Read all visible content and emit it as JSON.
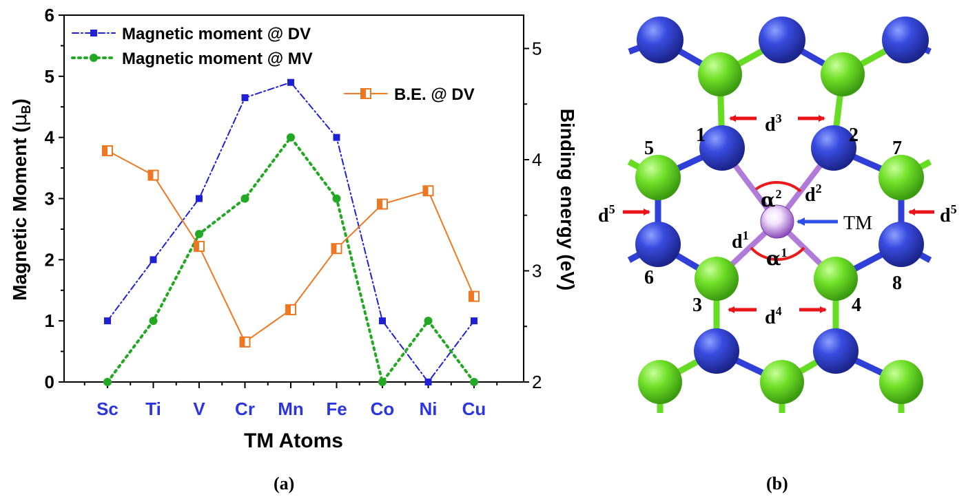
{
  "figure": {
    "panel_a_label": "(a)",
    "panel_b_label": "(b)"
  },
  "chart_data": {
    "type": "line",
    "xlabel": "TM Atoms",
    "ylabel": "Magnetic Moment (μB)",
    "ylabel_main": "Magnetic Moment (",
    "ylabel_mu": "μ",
    "ylabel_sub": "B",
    "ylabel_close": ")",
    "y2label": "Binding energy (eV)",
    "categories": [
      "Sc",
      "Ti",
      "V",
      "Cr",
      "Mn",
      "Fe",
      "Co",
      "Ni",
      "Cu"
    ],
    "ylim": [
      0,
      6
    ],
    "y_ticks": [
      0,
      1,
      2,
      3,
      4,
      5,
      6
    ],
    "y2lim": [
      2,
      5.3
    ],
    "y2_ticks": [
      2,
      3,
      4,
      5
    ],
    "series": [
      {
        "name": "Magnetic moment @ DV",
        "axis": "left",
        "color": "#1f1fd6",
        "marker": "square",
        "line": "dashdot",
        "values": [
          1,
          2,
          3,
          4.65,
          4.9,
          4,
          1,
          0,
          1
        ]
      },
      {
        "name": "Magnetic moment @ MV",
        "axis": "left",
        "color": "#22a822",
        "marker": "circle",
        "line": "dotted",
        "values": [
          0,
          1,
          2.42,
          3,
          4,
          3,
          0,
          1,
          0
        ]
      },
      {
        "name": "B.E. @ DV",
        "axis": "right",
        "color": "#ee7722",
        "marker": "half-square",
        "line": "solid",
        "values": [
          4.08,
          3.86,
          3.22,
          2.36,
          2.65,
          3.2,
          3.6,
          3.72,
          2.77
        ]
      }
    ],
    "colors": {
      "axis": "#000000",
      "tick_label_x": "#2b35e0",
      "border": "#000000"
    }
  },
  "diagram_b": {
    "atom_labels": [
      "1",
      "2",
      "3",
      "4",
      "5",
      "6",
      "7",
      "8"
    ],
    "center_label": "TM",
    "distances": [
      "d",
      "d",
      "d",
      "d",
      "d",
      "d",
      "d"
    ],
    "distance_sup": [
      "3",
      "4",
      "5",
      "5",
      "2",
      "1"
    ],
    "angle_labels": [
      "α",
      "α"
    ],
    "angle_sup": [
      "2",
      "1"
    ],
    "colors": {
      "blue_atom": "#2f3fd8",
      "green_atom": "#66dd22",
      "tm_atom": "#c79ae6",
      "arrow": "#e8141a",
      "tm_arrow": "#2f50e8",
      "angle": "#e81a1a"
    }
  }
}
